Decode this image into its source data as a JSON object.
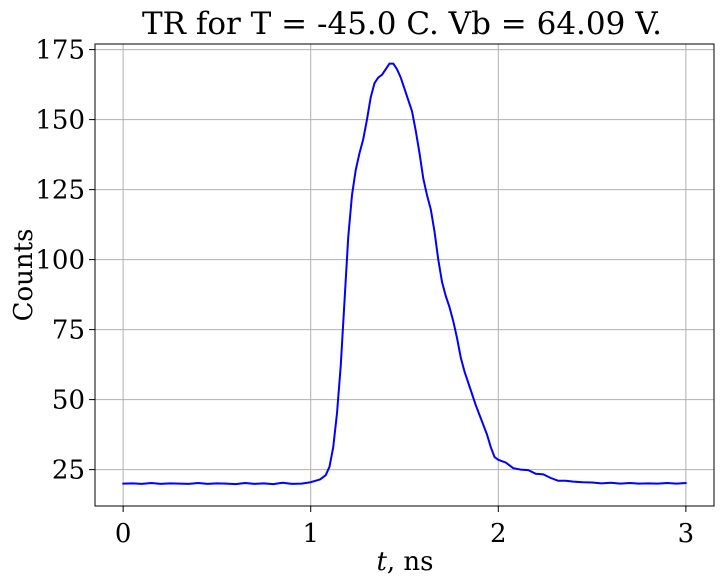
{
  "chart_data": {
    "type": "line",
    "title": "TR for T = -45.0 C. Vb = 64.09 V.",
    "xlabel_italic": "t",
    "xlabel_rest": ", ns",
    "ylabel": "Counts",
    "xlim": [
      -0.15,
      3.15
    ],
    "ylim": [
      12,
      177
    ],
    "xticks": [
      0,
      1,
      2,
      3
    ],
    "xtick_labels": [
      "0",
      "1",
      "2",
      "3"
    ],
    "yticks": [
      25,
      50,
      75,
      100,
      125,
      150,
      175
    ],
    "ytick_labels": [
      "25",
      "50",
      "75",
      "100",
      "125",
      "150",
      "175"
    ],
    "grid": true,
    "series": [
      {
        "color": "#0000ff",
        "x": [
          0.0,
          0.05,
          0.1,
          0.15,
          0.2,
          0.25,
          0.3,
          0.35,
          0.4,
          0.45,
          0.5,
          0.55,
          0.6,
          0.65,
          0.7,
          0.75,
          0.8,
          0.85,
          0.9,
          0.95,
          1.0,
          1.05,
          1.08,
          1.1,
          1.12,
          1.14,
          1.16,
          1.18,
          1.2,
          1.22,
          1.24,
          1.26,
          1.28,
          1.3,
          1.32,
          1.34,
          1.36,
          1.38,
          1.4,
          1.42,
          1.44,
          1.46,
          1.48,
          1.5,
          1.52,
          1.54,
          1.56,
          1.58,
          1.6,
          1.62,
          1.64,
          1.66,
          1.68,
          1.7,
          1.72,
          1.74,
          1.76,
          1.78,
          1.8,
          1.82,
          1.84,
          1.86,
          1.88,
          1.9,
          1.92,
          1.94,
          1.96,
          1.98,
          2.0,
          2.04,
          2.08,
          2.12,
          2.16,
          2.2,
          2.24,
          2.28,
          2.32,
          2.36,
          2.4,
          2.45,
          2.5,
          2.55,
          2.6,
          2.65,
          2.7,
          2.75,
          2.8,
          2.85,
          2.9,
          2.95,
          3.0
        ],
        "y": [
          20.0,
          20.1,
          19.9,
          20.2,
          19.9,
          20.1,
          20.0,
          19.9,
          20.2,
          19.9,
          20.1,
          20.0,
          19.8,
          20.2,
          19.9,
          20.1,
          19.8,
          20.3,
          19.9,
          20.0,
          20.5,
          21.5,
          23.0,
          26.0,
          33.0,
          45.0,
          62.0,
          85.0,
          108.0,
          123.0,
          132.0,
          138.0,
          143.0,
          150.0,
          158.0,
          163.0,
          165.0,
          166.0,
          168.0,
          170.0,
          170.0,
          168.0,
          165.0,
          161.0,
          157.0,
          153.0,
          146.0,
          138.0,
          129.0,
          123.0,
          118.0,
          110.0,
          100.0,
          92.0,
          87.0,
          83.0,
          78.0,
          72.0,
          65.0,
          60.0,
          56.0,
          52.0,
          48.0,
          44.5,
          41.0,
          37.5,
          33.0,
          29.5,
          28.5,
          27.5,
          25.5,
          25.0,
          24.8,
          23.5,
          23.3,
          22.0,
          21.0,
          21.0,
          20.7,
          20.5,
          20.4,
          20.1,
          20.3,
          20.0,
          20.2,
          20.0,
          20.1,
          20.0,
          20.2,
          20.0,
          20.2
        ]
      }
    ]
  }
}
